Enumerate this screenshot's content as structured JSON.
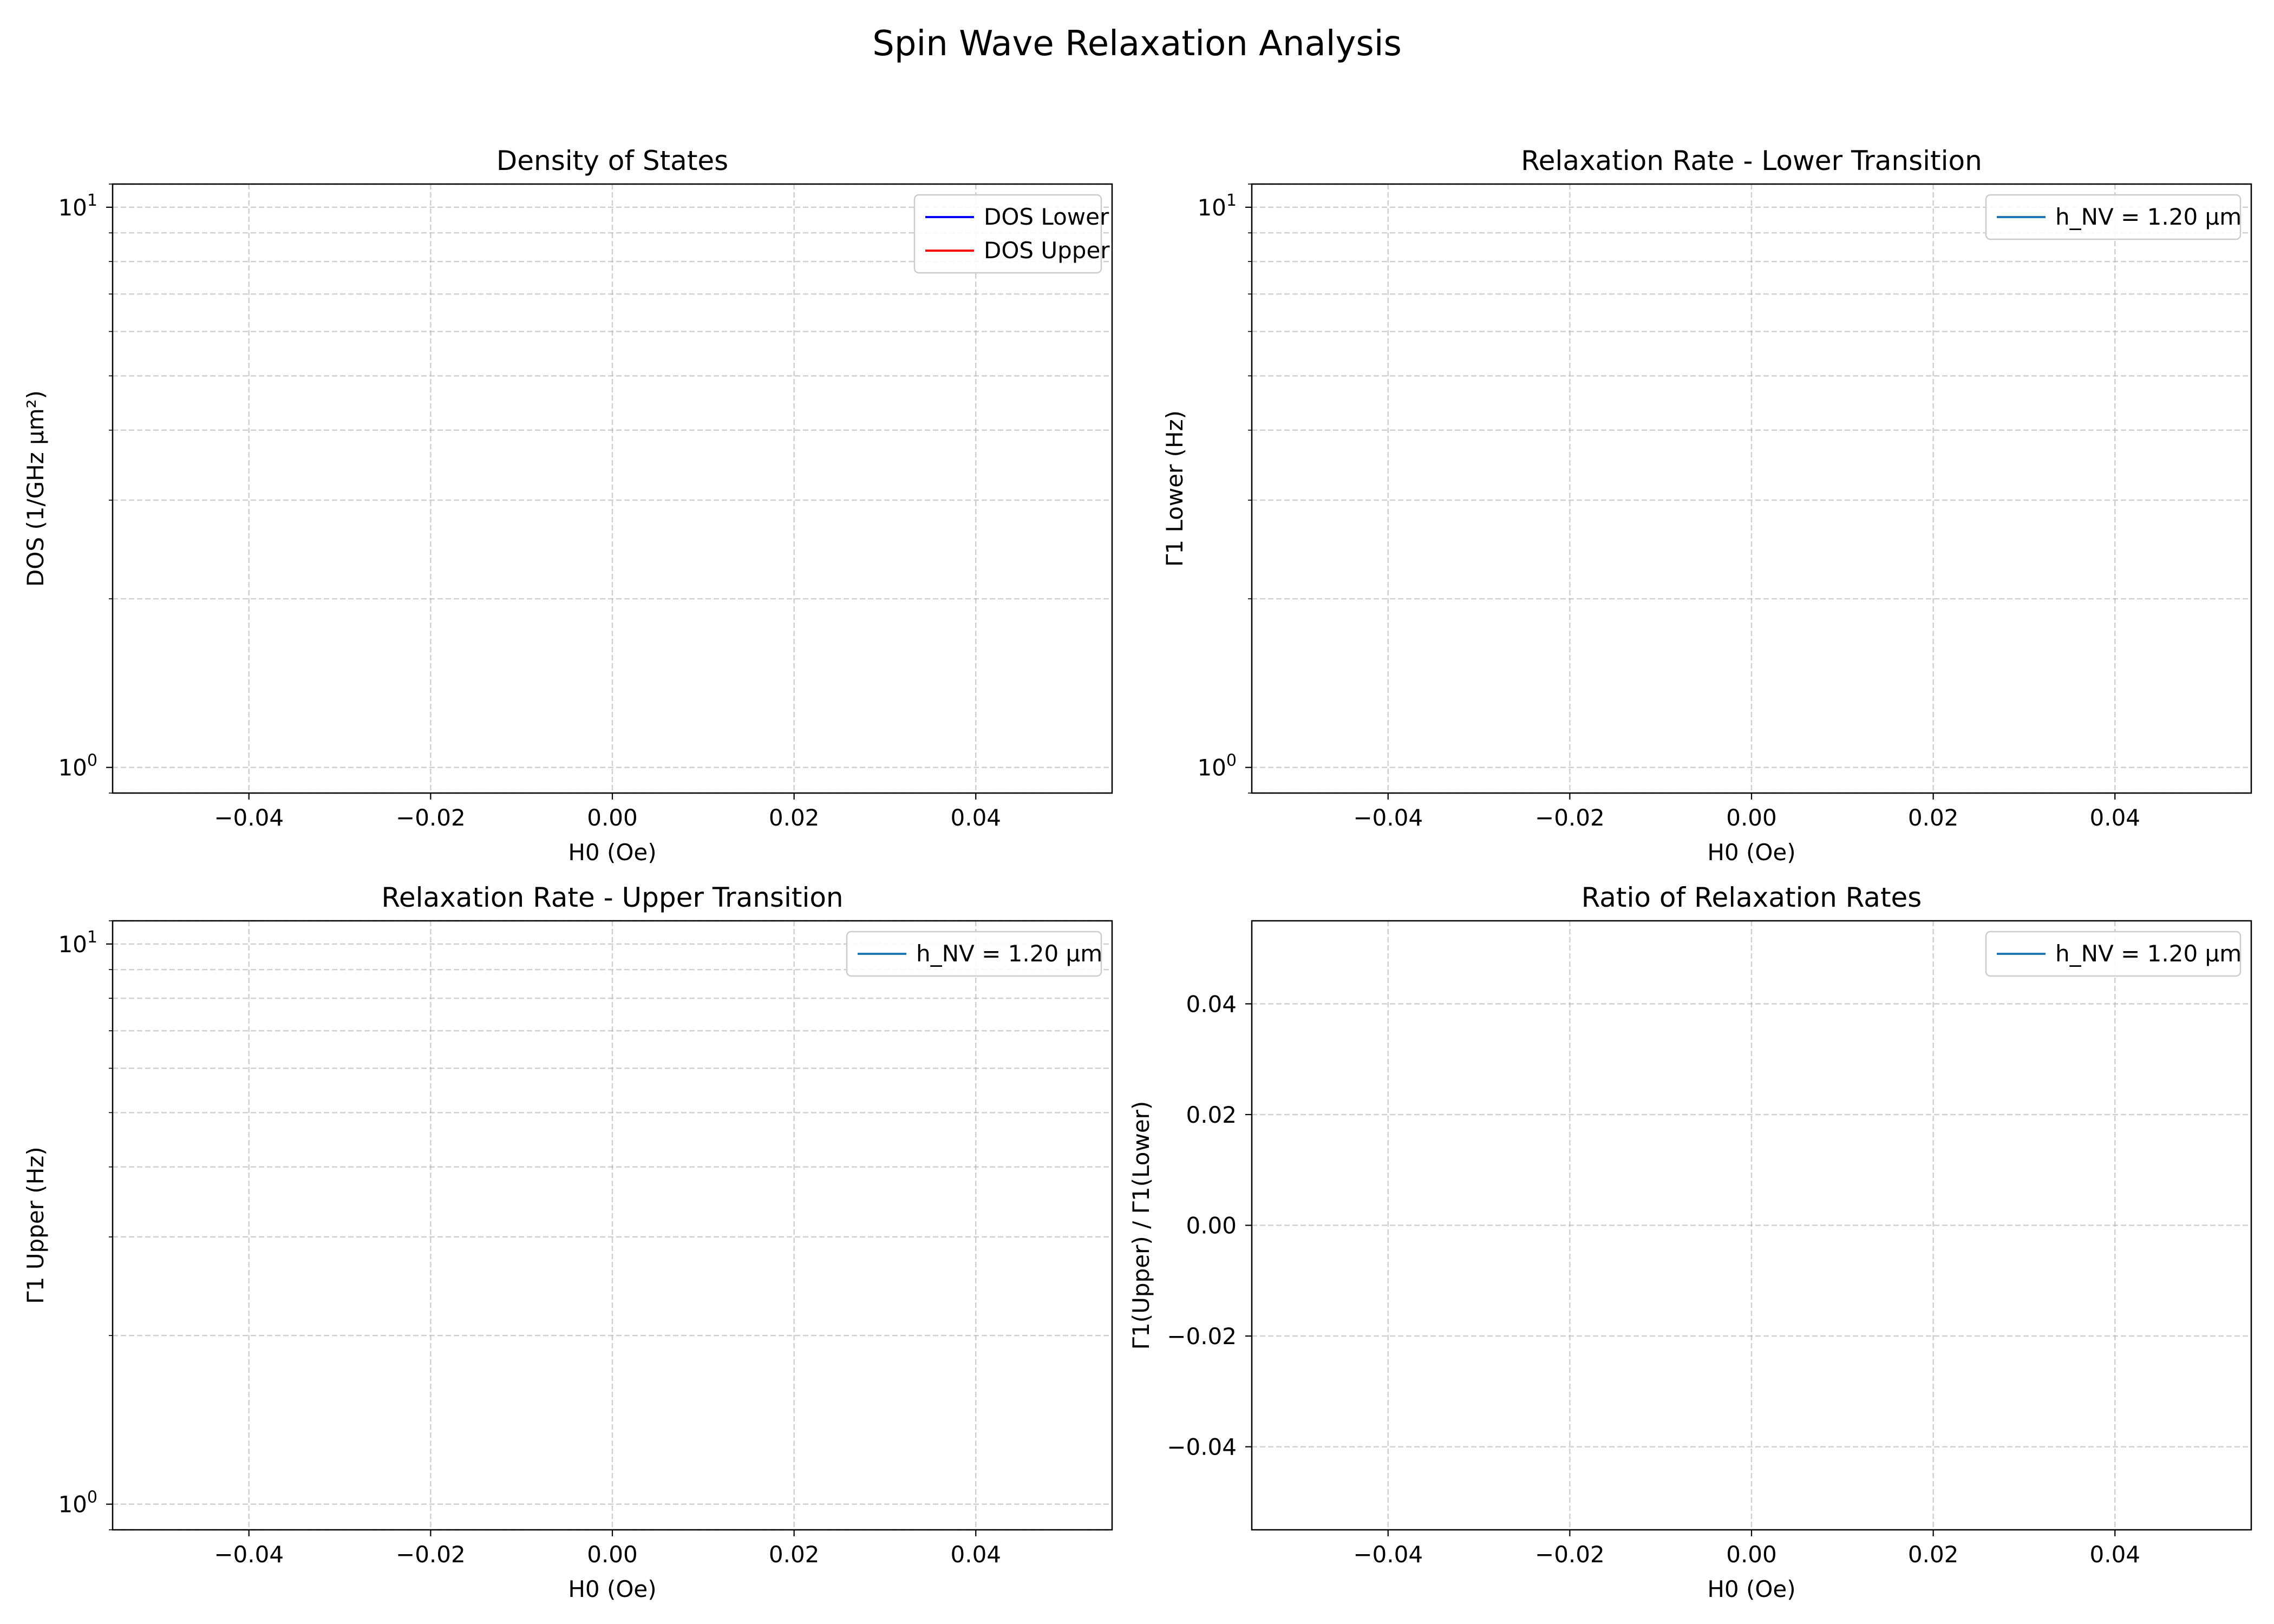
{
  "figure": {
    "title": "Spin Wave Relaxation Analysis"
  },
  "chart_data": [
    {
      "type": "line",
      "title": "Density of States",
      "xlabel": "H0 (Oe)",
      "ylabel": "DOS (1/GHz μm²)",
      "yscale": "log",
      "xlim": [
        -0.055,
        0.055
      ],
      "ylim": [
        0.9,
        11
      ],
      "xticks": [
        -0.04,
        -0.02,
        0.0,
        0.02,
        0.04
      ],
      "xtick_labels": [
        "−0.04",
        "−0.02",
        "0.00",
        "0.02",
        "0.04"
      ],
      "yticks_major": [
        1,
        10
      ],
      "grid": true,
      "legend_position": "upper-right",
      "series": [
        {
          "name": "DOS Lower",
          "color": "#0000ff",
          "x": [],
          "y": []
        },
        {
          "name": "DOS Upper",
          "color": "#ff0000",
          "x": [],
          "y": []
        }
      ]
    },
    {
      "type": "line",
      "title": "Relaxation Rate - Lower Transition",
      "xlabel": "H0 (Oe)",
      "ylabel": "Γ1 Lower (Hz)",
      "yscale": "log",
      "xlim": [
        -0.055,
        0.055
      ],
      "ylim": [
        0.9,
        11
      ],
      "xticks": [
        -0.04,
        -0.02,
        0.0,
        0.02,
        0.04
      ],
      "xtick_labels": [
        "−0.04",
        "−0.02",
        "0.00",
        "0.02",
        "0.04"
      ],
      "yticks_major": [
        1,
        10
      ],
      "grid": true,
      "legend_position": "upper-right",
      "series": [
        {
          "name": "h_NV = 1.20 μm",
          "color": "#1f77b4",
          "x": [],
          "y": []
        }
      ]
    },
    {
      "type": "line",
      "title": "Relaxation Rate - Upper Transition",
      "xlabel": "H0 (Oe)",
      "ylabel": "Γ1 Upper (Hz)",
      "yscale": "log",
      "xlim": [
        -0.055,
        0.055
      ],
      "ylim": [
        0.9,
        11
      ],
      "xticks": [
        -0.04,
        -0.02,
        0.0,
        0.02,
        0.04
      ],
      "xtick_labels": [
        "−0.04",
        "−0.02",
        "0.00",
        "0.02",
        "0.04"
      ],
      "yticks_major": [
        1,
        10
      ],
      "grid": true,
      "legend_position": "upper-right",
      "series": [
        {
          "name": "h_NV = 1.20 μm",
          "color": "#1f77b4",
          "x": [],
          "y": []
        }
      ]
    },
    {
      "type": "line",
      "title": "Ratio of Relaxation Rates",
      "xlabel": "H0 (Oe)",
      "ylabel": "Γ1(Upper) / Γ1(Lower)",
      "yscale": "linear",
      "xlim": [
        -0.055,
        0.055
      ],
      "ylim": [
        -0.055,
        0.055
      ],
      "xticks": [
        -0.04,
        -0.02,
        0.0,
        0.02,
        0.04
      ],
      "xtick_labels": [
        "−0.04",
        "−0.02",
        "0.00",
        "0.02",
        "0.04"
      ],
      "yticks": [
        -0.04,
        -0.02,
        0.0,
        0.02,
        0.04
      ],
      "ytick_labels": [
        "−0.04",
        "−0.02",
        "0.00",
        "0.02",
        "0.04"
      ],
      "grid": true,
      "legend_position": "upper-right",
      "series": [
        {
          "name": "h_NV = 1.20 μm",
          "color": "#1f77b4",
          "x": [],
          "y": []
        }
      ]
    }
  ]
}
